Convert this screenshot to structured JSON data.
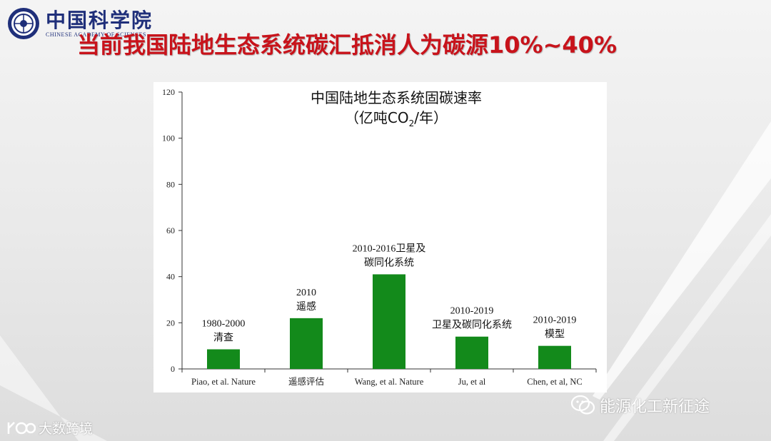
{
  "header": {
    "logo_cn": "中国科学院",
    "logo_en": "CHINESE ACADEMY OF SCIENCES",
    "title": "当前我国陆地生态系统碳汇抵消人为碳源10%~40%"
  },
  "chart_data": {
    "type": "bar",
    "title": "中国陆地生态系统固碳速率",
    "unit_prefix": "（亿吨CO",
    "unit_sub": "2",
    "unit_suffix": "/年）",
    "categories": [
      "Piao, et al. Nature",
      "遥感评估",
      "Wang, et al. Nature",
      "Ju, et al",
      "Chen, et al, NC"
    ],
    "values": [
      8.5,
      22,
      41,
      14,
      10
    ],
    "annotations": [
      [
        "1980-2000",
        "清查"
      ],
      [
        "2010",
        "遥感"
      ],
      [
        "2010-2016卫星及",
        "碳同化系统"
      ],
      [
        "2010-2019",
        "卫星及碳同化系统"
      ],
      [
        "2010-2019",
        "模型"
      ]
    ],
    "ylim": [
      0,
      120
    ],
    "yticks": [
      0,
      20,
      40,
      60,
      80,
      100,
      120
    ],
    "bar_color": "#138a1b",
    "grid": false
  },
  "watermarks": {
    "right": "能源化工新征途",
    "left": "大数跨境"
  },
  "icons": {
    "logo": "cas-seal-icon",
    "wechat": "wechat-icon",
    "brand": "brand-logo-icon"
  }
}
